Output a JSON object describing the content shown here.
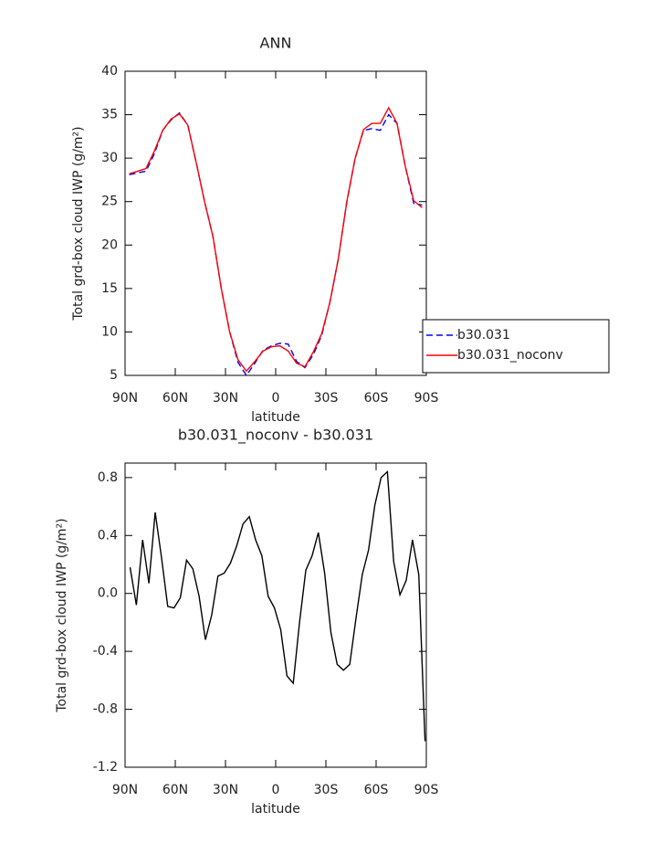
{
  "chart_data": [
    {
      "type": "line",
      "title": "ANN",
      "x_label": "latitude",
      "y_label": "Total grd-box cloud IWP (g/m²)",
      "x": [
        87.5,
        82.5,
        77.5,
        72.5,
        67.5,
        62.5,
        57.5,
        52.5,
        47.5,
        42.5,
        37.5,
        32.5,
        27.5,
        22.5,
        17.5,
        12.5,
        7.5,
        2.5,
        -2.5,
        -7.5,
        -12.5,
        -17.5,
        -22.5,
        -27.5,
        -32.5,
        -37.5,
        -42.5,
        -47.5,
        -52.5,
        -57.5,
        -62.5,
        -67.5,
        -72.5,
        -77.5,
        -82.5,
        -87.5
      ],
      "series": [
        {
          "name": "b30.031",
          "color": "#0000ff",
          "dashed": true,
          "values": [
            28.1,
            28.3,
            28.5,
            30.5,
            33.2,
            34.4,
            35.2,
            33.8,
            29.5,
            25,
            21,
            15,
            10,
            6.5,
            5.0,
            6.4,
            7.9,
            8.4,
            8.7,
            8.6,
            6.6,
            5.9,
            7.4,
            9.6,
            13.5,
            18.5,
            25,
            30,
            33.2,
            33.4,
            33.2,
            35.0,
            34.0,
            29,
            24.8,
            24.6
          ]
        },
        {
          "name": "b30.031_noconv",
          "color": "#ff0000",
          "dashed": false,
          "values": [
            28.2,
            28.5,
            28.8,
            30.8,
            33.2,
            34.5,
            35.1,
            33.8,
            29.5,
            25,
            21,
            15,
            10,
            6.8,
            5.5,
            6.6,
            7.8,
            8.3,
            8.4,
            7.8,
            6.4,
            6.0,
            7.7,
            9.8,
            13.5,
            18.5,
            25,
            30,
            33.3,
            34.0,
            34.0,
            35.8,
            34.0,
            29,
            25.1,
            24.3
          ]
        }
      ],
      "xlim": [
        90,
        -90
      ],
      "xticks": [
        {
          "value": 90,
          "label": "90N"
        },
        {
          "value": 60,
          "label": "60N"
        },
        {
          "value": 30,
          "label": "30N"
        },
        0,
        {
          "value": -30,
          "label": "30S"
        },
        {
          "value": -60,
          "label": "60S"
        },
        {
          "value": -90,
          "label": "90S"
        }
      ],
      "ylim": [
        5,
        40
      ],
      "yticks": [
        5,
        10,
        15,
        20,
        25,
        30,
        35,
        40
      ],
      "grid": false,
      "legend": "right"
    },
    {
      "type": "line",
      "title": "b30.031_noconv - b30.031",
      "x_label": "latitude",
      "y_label": "Total grd-box cloud IWP (g/m²)",
      "x": [
        87,
        83.25,
        79.5,
        75.75,
        72,
        68.25,
        64.5,
        60.75,
        57,
        53.25,
        49.5,
        45.75,
        42,
        38.25,
        34.5,
        30.75,
        27,
        23.25,
        19.5,
        15.75,
        12,
        8.25,
        4.5,
        0.75,
        -3,
        -6.75,
        -10.5,
        -14.25,
        -18,
        -21.75,
        -25.5,
        -29.25,
        -33,
        -36.75,
        -40.5,
        -44.25,
        -48,
        -51.75,
        -55.5,
        -59.25,
        -63,
        -66.75,
        -70.5,
        -74.25,
        -78,
        -81.75,
        -85.5,
        -89.25
      ],
      "series": [
        {
          "color": "#000000",
          "dashed": false,
          "values": [
            0.18,
            -0.08,
            0.37,
            0.07,
            0.56,
            0.25,
            -0.09,
            -0.1,
            -0.03,
            0.23,
            0.17,
            -0.02,
            -0.32,
            -0.15,
            0.12,
            0.14,
            0.21,
            0.33,
            0.48,
            0.53,
            0.37,
            0.26,
            -0.02,
            -0.1,
            -0.25,
            -0.57,
            -0.62,
            -0.2,
            0.16,
            0.26,
            0.42,
            0.14,
            -0.27,
            -0.49,
            -0.53,
            -0.49,
            -0.17,
            0.13,
            0.3,
            0.61,
            0.8,
            0.84,
            0.22,
            -0.01,
            0.09,
            0.37,
            0.13,
            -1.02
          ]
        }
      ],
      "xlim": [
        90,
        -90
      ],
      "xticks": [
        {
          "value": 90,
          "label": "90N"
        },
        {
          "value": 60,
          "label": "60N"
        },
        {
          "value": 30,
          "label": "30N"
        },
        0,
        {
          "value": -30,
          "label": "30S"
        },
        {
          "value": -60,
          "label": "60S"
        },
        {
          "value": -90,
          "label": "90S"
        }
      ],
      "ylim": [
        -1.2,
        0.9
      ],
      "yticks": [
        -1.2,
        -0.8,
        -0.4,
        {
          "value": 0,
          "label": "0.0"
        },
        0.4,
        0.8
      ],
      "grid": false
    }
  ]
}
